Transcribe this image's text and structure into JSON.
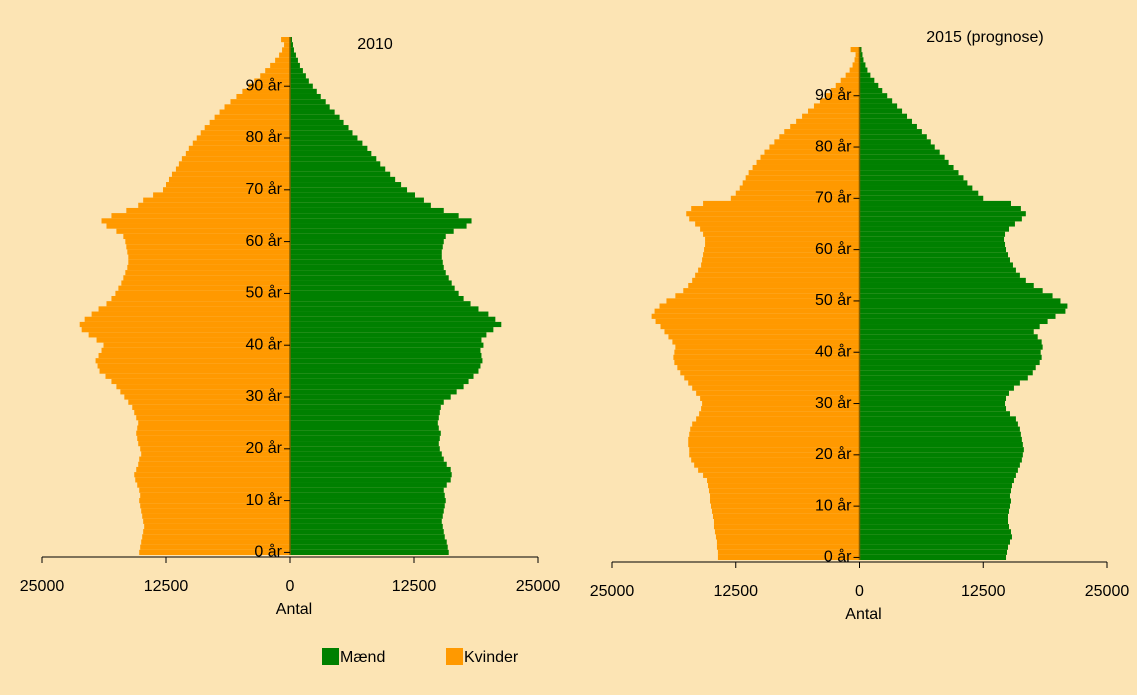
{
  "chart_data": [
    {
      "type": "pyramid",
      "title": "2010",
      "x_label": "Antal",
      "y": [
        0,
        1,
        2,
        3,
        4,
        5,
        6,
        7,
        8,
        9,
        10,
        11,
        12,
        13,
        14,
        15,
        16,
        17,
        18,
        19,
        20,
        21,
        22,
        23,
        24,
        25,
        26,
        27,
        28,
        29,
        30,
        31,
        32,
        33,
        34,
        35,
        36,
        37,
        38,
        39,
        40,
        41,
        42,
        43,
        44,
        45,
        46,
        47,
        48,
        49,
        50,
        51,
        52,
        53,
        54,
        55,
        56,
        57,
        58,
        59,
        60,
        61,
        62,
        63,
        64,
        65,
        66,
        67,
        68,
        69,
        70,
        71,
        72,
        73,
        74,
        75,
        76,
        77,
        78,
        79,
        80,
        81,
        82,
        83,
        84,
        85,
        86,
        87,
        88,
        89,
        90,
        91,
        92,
        93,
        94,
        95,
        96,
        97,
        98,
        99
      ],
      "series": [
        {
          "name": "Mænd",
          "color": "#008000",
          "side": "right",
          "values": [
            16000,
            15900,
            15800,
            15600,
            15500,
            15400,
            15300,
            15400,
            15500,
            15600,
            15700,
            15600,
            15500,
            15800,
            16200,
            16300,
            16200,
            15800,
            15500,
            15300,
            15100,
            15000,
            15100,
            15200,
            15000,
            14900,
            15000,
            15100,
            15200,
            15500,
            16200,
            16800,
            17500,
            18000,
            18500,
            19000,
            19200,
            19400,
            19300,
            19200,
            19500,
            19300,
            19800,
            20500,
            21300,
            20700,
            20000,
            19000,
            18200,
            17500,
            17000,
            16600,
            16300,
            16000,
            15700,
            15500,
            15400,
            15300,
            15300,
            15400,
            15500,
            15700,
            16500,
            17800,
            18300,
            17000,
            15500,
            14200,
            13500,
            12600,
            11800,
            11200,
            10600,
            10100,
            9600,
            9100,
            8700,
            8200,
            7800,
            7300,
            6800,
            6300,
            5900,
            5400,
            5000,
            4500,
            4000,
            3600,
            3100,
            2700,
            2300,
            1900,
            1600,
            1300,
            1000,
            800,
            600,
            400,
            300,
            200
          ]
        },
        {
          "name": "Kvinder",
          "color": "#ff9900",
          "side": "left",
          "values": [
            15200,
            15100,
            15000,
            14900,
            14800,
            14700,
            14800,
            14900,
            15000,
            15100,
            15200,
            15100,
            15200,
            15400,
            15600,
            15700,
            15500,
            15300,
            15200,
            15000,
            15100,
            15300,
            15400,
            15500,
            15400,
            15300,
            15500,
            15700,
            15900,
            16300,
            16700,
            17100,
            17500,
            18000,
            18600,
            19200,
            19400,
            19600,
            19300,
            19000,
            18800,
            19500,
            20300,
            21000,
            21200,
            20700,
            20000,
            19300,
            18500,
            18000,
            17600,
            17300,
            17000,
            16800,
            16600,
            16400,
            16300,
            16300,
            16400,
            16500,
            16600,
            16800,
            17500,
            18500,
            19000,
            18000,
            16500,
            15300,
            14800,
            13800,
            12800,
            12500,
            12200,
            11900,
            11500,
            11200,
            10900,
            10500,
            10200,
            9800,
            9400,
            9000,
            8600,
            8100,
            7600,
            7100,
            6600,
            6000,
            5400,
            4800,
            4200,
            3600,
            3000,
            2500,
            2000,
            1500,
            1100,
            800,
            600,
            900
          ]
        }
      ],
      "xlim": [
        -25000,
        25000
      ],
      "xticks": [
        {
          "value": -25000,
          "label": "25000"
        },
        {
          "value": -12500,
          "label": "12500"
        },
        0,
        12500,
        25000
      ],
      "ylim": [
        -0.5,
        99.5
      ],
      "yticks": [
        {
          "value": 0,
          "label": "0 år"
        },
        {
          "value": 10,
          "label": "10 år"
        },
        {
          "value": 20,
          "label": "20 år"
        },
        {
          "value": 30,
          "label": "30 år"
        },
        {
          "value": 40,
          "label": "40 år"
        },
        {
          "value": 50,
          "label": "50 år"
        },
        {
          "value": 60,
          "label": "60 år"
        },
        {
          "value": 70,
          "label": "70 år"
        },
        {
          "value": 80,
          "label": "80 år"
        },
        {
          "value": 90,
          "label": "90 år"
        }
      ]
    },
    {
      "type": "pyramid",
      "title": "2015 (prognose)",
      "x_label": "Antal",
      "y": [
        0,
        1,
        2,
        3,
        4,
        5,
        6,
        7,
        8,
        9,
        10,
        11,
        12,
        13,
        14,
        15,
        16,
        17,
        18,
        19,
        20,
        21,
        22,
        23,
        24,
        25,
        26,
        27,
        28,
        29,
        30,
        31,
        32,
        33,
        34,
        35,
        36,
        37,
        38,
        39,
        40,
        41,
        42,
        43,
        44,
        45,
        46,
        47,
        48,
        49,
        50,
        51,
        52,
        53,
        54,
        55,
        56,
        57,
        58,
        59,
        60,
        61,
        62,
        63,
        64,
        65,
        66,
        67,
        68,
        69,
        70,
        71,
        72,
        73,
        74,
        75,
        76,
        77,
        78,
        79,
        80,
        81,
        82,
        83,
        84,
        85,
        86,
        87,
        88,
        89,
        90,
        91,
        92,
        93,
        94,
        95,
        96,
        97,
        98,
        99
      ],
      "series": [
        {
          "name": "Mænd",
          "color": "#008000",
          "side": "right",
          "values": [
            14800,
            14900,
            15000,
            15200,
            15400,
            15300,
            15100,
            15000,
            15000,
            15100,
            15200,
            15300,
            15200,
            15300,
            15400,
            15600,
            15800,
            16000,
            16200,
            16400,
            16500,
            16600,
            16500,
            16400,
            16300,
            16200,
            16000,
            15800,
            15200,
            14800,
            14700,
            14800,
            15100,
            15600,
            16200,
            17000,
            17500,
            17800,
            18200,
            18400,
            18300,
            18500,
            18400,
            18000,
            17600,
            18200,
            19000,
            19800,
            20800,
            21000,
            20300,
            19500,
            18500,
            17600,
            16800,
            16200,
            15800,
            15500,
            15200,
            15000,
            14800,
            14700,
            14600,
            14700,
            15100,
            15700,
            16400,
            16800,
            16300,
            15300,
            12500,
            12000,
            11400,
            10900,
            10500,
            10000,
            9500,
            9000,
            8600,
            8100,
            7600,
            7200,
            6800,
            6300,
            5800,
            5300,
            4800,
            4300,
            3800,
            3300,
            2800,
            2300,
            1900,
            1500,
            1100,
            800,
            600,
            400,
            300,
            200
          ]
        },
        {
          "name": "Kvinder",
          "color": "#ff9900",
          "side": "left",
          "values": [
            14300,
            14300,
            14400,
            14400,
            14500,
            14600,
            14700,
            14700,
            14800,
            14900,
            15000,
            15100,
            15100,
            15200,
            15300,
            15400,
            15800,
            16300,
            16700,
            17000,
            17200,
            17200,
            17300,
            17300,
            17200,
            17100,
            16900,
            16500,
            16200,
            16000,
            15900,
            16100,
            16500,
            16900,
            17300,
            17700,
            18100,
            18400,
            18700,
            18800,
            18700,
            18600,
            18900,
            19300,
            19700,
            20100,
            20600,
            21000,
            20700,
            20200,
            19500,
            18600,
            17800,
            17300,
            16900,
            16600,
            16300,
            16000,
            15900,
            15800,
            15700,
            15600,
            15600,
            15800,
            16100,
            16600,
            17200,
            17500,
            17000,
            15800,
            13000,
            12500,
            12100,
            11800,
            11500,
            11200,
            10800,
            10400,
            10000,
            9600,
            9100,
            8600,
            8100,
            7600,
            7000,
            6400,
            5800,
            5200,
            4600,
            4000,
            3500,
            2900,
            2400,
            1900,
            1400,
            1000,
            700,
            500,
            400,
            900
          ]
        }
      ],
      "xlim": [
        -25000,
        25000
      ],
      "xticks": [
        {
          "value": -25000,
          "label": "25000"
        },
        {
          "value": -12500,
          "label": "12500"
        },
        0,
        12500,
        25000
      ],
      "ylim": [
        -0.5,
        99.5
      ],
      "yticks": [
        {
          "value": 0,
          "label": "0 år"
        },
        {
          "value": 10,
          "label": "10 år"
        },
        {
          "value": 20,
          "label": "20 år"
        },
        {
          "value": 30,
          "label": "30 år"
        },
        {
          "value": 40,
          "label": "40 år"
        },
        {
          "value": 50,
          "label": "50 år"
        },
        {
          "value": 60,
          "label": "60 år"
        },
        {
          "value": 70,
          "label": "70 år"
        },
        {
          "value": 80,
          "label": "80 år"
        },
        {
          "value": 90,
          "label": "90 år"
        }
      ]
    }
  ]
}
